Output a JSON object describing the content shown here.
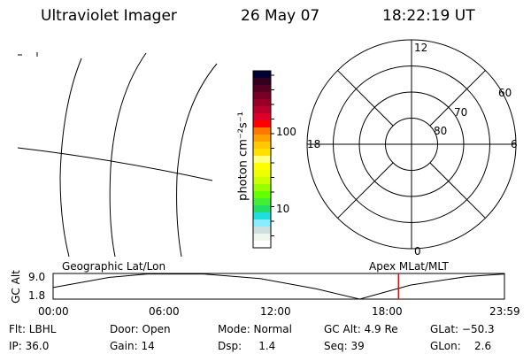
{
  "header": {
    "instrument": "Ultraviolet Imager",
    "date": "26 May 07",
    "time": "18:22:19 UT"
  },
  "colorbar": {
    "unit_label": "photon cm⁻²s⁻¹",
    "ticks": [
      "100",
      "10"
    ],
    "colors": [
      "#000033",
      "#33001f",
      "#550022",
      "#770025",
      "#990028",
      "#bb002a",
      "#dd002a",
      "#ff0000",
      "#ff7700",
      "#ffa000",
      "#ffc800",
      "#ffe000",
      "#ffff80",
      "#ffff00",
      "#eeff00",
      "#ccff00",
      "#99ff00",
      "#66ff00",
      "#44ee33",
      "#22dd66",
      "#22dddd",
      "#88eeff",
      "#cce0e0",
      "#eef6ee",
      "#ffffff"
    ]
  },
  "polar": {
    "labels": {
      "top": "12",
      "left": "18",
      "right": "6",
      "bottom": "0"
    },
    "rings": [
      "60",
      "70",
      "80"
    ]
  },
  "timeline": {
    "left_label": "Geographic Lat/Lon",
    "right_label": "Apex MLat/MLT",
    "y_axis_label": "GC Alt",
    "y_ticks": [
      "9.0",
      "1.8"
    ],
    "x_ticks": [
      "00:00",
      "06:00",
      "12:00",
      "18:00",
      "23:59"
    ],
    "marker_color": "#ff0000",
    "marker_time": "18:22"
  },
  "status": {
    "row1": [
      "Flt: LBHL",
      "Door: Open",
      "Mode: Normal",
      "GC Alt: 4.9 Re",
      "GLat: −50.3"
    ],
    "row2": [
      "IP: 36.0",
      "Gain: 14",
      "Dsp:     1.4",
      "Seq: 39",
      "GLon:    2.6"
    ]
  }
}
